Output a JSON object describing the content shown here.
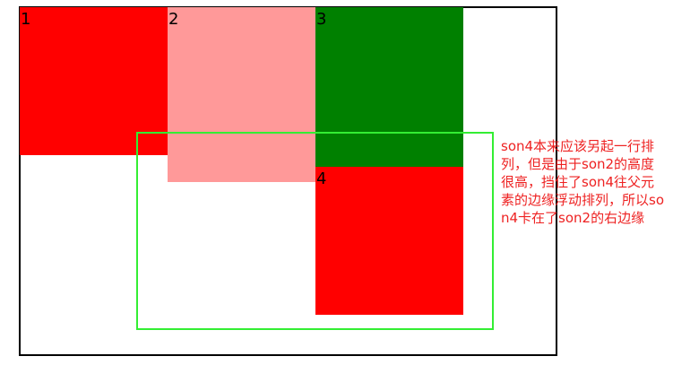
{
  "boxes": [
    {
      "label": "1",
      "color": "#ff0000"
    },
    {
      "label": "2",
      "color": "#ff9999"
    },
    {
      "label": "3",
      "color": "#008000"
    },
    {
      "label": "4",
      "color": "#ff0000"
    }
  ],
  "colors": {
    "parent_border": "#000000",
    "highlight_border": "#33ee33",
    "note_text": "#ee2222"
  },
  "note": "son4本来应该另起一行排列，但是由于son2的高度很高，挡住了son4往父元素的边缘浮动排列，所以son4卡在了son2的右边缘"
}
